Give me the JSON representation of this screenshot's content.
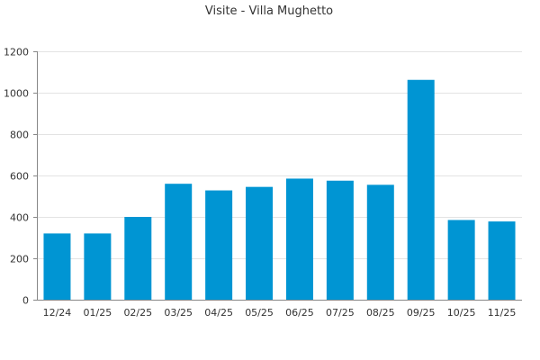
{
  "chart_data": {
    "type": "bar",
    "title": "Visite - Villa Mughetto",
    "xlabel": "",
    "ylabel": "",
    "categories": [
      "12/24",
      "01/25",
      "02/25",
      "03/25",
      "04/25",
      "05/25",
      "06/25",
      "07/25",
      "08/25",
      "09/25",
      "10/25",
      "11/25"
    ],
    "values": [
      320,
      320,
      400,
      560,
      528,
      545,
      585,
      575,
      555,
      1062,
      385,
      378
    ],
    "ylim": [
      0,
      1200
    ],
    "yticks": [
      "0",
      "200",
      "400",
      "600",
      "800",
      "1000",
      "1200"
    ],
    "grid": true,
    "legend": "none",
    "bar_color": "#0095d3"
  }
}
